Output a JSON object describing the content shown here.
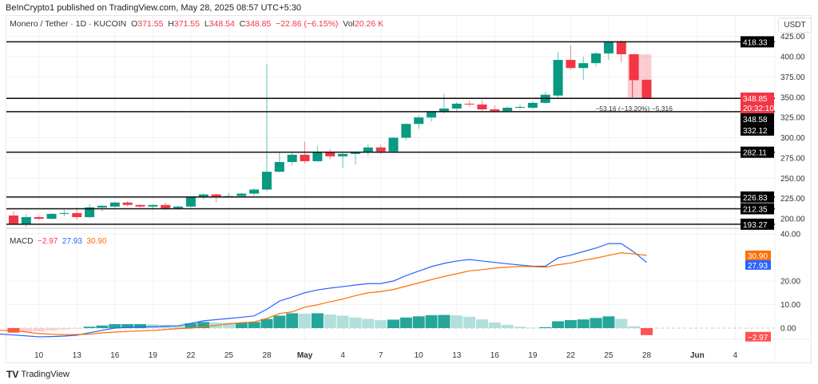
{
  "header": {
    "published": "BeInCrypto1 published on TradingView.com, May 28, 2025 08:57 UTC+5:30"
  },
  "legend": {
    "symbol": "Monero / Tether · 1D · KUCOIN",
    "o_label": "O",
    "o": "371.55",
    "h_label": "H",
    "h": "371.55",
    "l_label": "L",
    "l": "348.54",
    "c_label": "C",
    "c": "348.85",
    "change": "−22.86 (−6.15%)",
    "vol_label": "Vol",
    "vol": "20.26 K"
  },
  "currency": "USDT",
  "colors": {
    "up": "#089981",
    "down": "#f23645",
    "macd": "#2962ff",
    "signal": "#ff6d00",
    "hist_up_strong": "#26a69a",
    "hist_up_weak": "#b2dfdb",
    "hist_down_strong": "#ff5252",
    "hist_down_weak": "#ffcdd2"
  },
  "price_axis": {
    "ticks": [
      200,
      225,
      250,
      275,
      300,
      325,
      350,
      375,
      400,
      425
    ]
  },
  "levels": [
    418.33,
    348.58,
    332.12,
    282.11,
    226.83,
    212.35,
    193.27
  ],
  "last_price": {
    "value": "348.85",
    "countdown": "20:32:10"
  },
  "measure": {
    "text": "−53.16 (−13.20%) −5,316",
    "from": 403,
    "to": 349.85
  },
  "x_axis": {
    "labels": [
      {
        "day": 2,
        "t": "10"
      },
      {
        "day": 5,
        "t": "13"
      },
      {
        "day": 8,
        "t": "16"
      },
      {
        "day": 11,
        "t": "19"
      },
      {
        "day": 14,
        "t": "22"
      },
      {
        "day": 17,
        "t": "25"
      },
      {
        "day": 20,
        "t": "28"
      },
      {
        "day": 23,
        "t": "May"
      },
      {
        "day": 26,
        "t": "4"
      },
      {
        "day": 29,
        "t": "7"
      },
      {
        "day": 32,
        "t": "10"
      },
      {
        "day": 35,
        "t": "13"
      },
      {
        "day": 38,
        "t": "16"
      },
      {
        "day": 41,
        "t": "19"
      },
      {
        "day": 44,
        "t": "22"
      },
      {
        "day": 47,
        "t": "25"
      },
      {
        "day": 50,
        "t": "28"
      },
      {
        "day": 54,
        "t": "Jun"
      },
      {
        "day": 57,
        "t": "4"
      }
    ]
  },
  "chart_data": {
    "type": "candlestick",
    "start_date": "2025-04-08",
    "ohlc": [
      [
        204,
        209,
        193,
        194
      ],
      [
        193,
        206,
        190,
        202
      ],
      [
        202,
        204,
        198,
        200
      ],
      [
        200,
        207,
        199,
        206
      ],
      [
        206,
        211,
        203,
        207
      ],
      [
        207,
        214,
        199,
        202
      ],
      [
        202,
        218,
        201,
        214
      ],
      [
        214,
        217,
        209,
        216
      ],
      [
        215,
        221,
        214,
        220
      ],
      [
        220,
        222,
        215,
        217
      ],
      [
        217,
        218,
        214,
        215
      ],
      [
        215,
        218,
        211,
        217
      ],
      [
        217,
        220,
        211,
        213
      ],
      [
        213,
        216,
        212,
        215
      ],
      [
        215,
        228,
        214,
        227
      ],
      [
        227,
        231,
        224,
        230
      ],
      [
        230,
        231,
        220,
        227
      ],
      [
        227,
        232,
        226,
        228
      ],
      [
        228,
        232,
        227,
        231
      ],
      [
        231,
        238,
        228,
        236
      ],
      [
        236,
        391,
        234,
        258
      ],
      [
        258,
        282,
        257,
        270
      ],
      [
        270,
        283,
        266,
        279
      ],
      [
        279,
        295,
        268,
        271
      ],
      [
        271,
        290,
        270,
        282
      ],
      [
        282,
        286,
        273,
        277
      ],
      [
        277,
        281,
        263,
        280
      ],
      [
        280,
        283,
        267,
        282
      ],
      [
        282,
        292,
        278,
        288
      ],
      [
        288,
        292,
        280,
        283
      ],
      [
        283,
        301,
        281,
        300
      ],
      [
        300,
        318,
        297,
        317
      ],
      [
        317,
        328,
        311,
        325
      ],
      [
        325,
        333,
        320,
        332
      ],
      [
        332,
        354,
        330,
        336
      ],
      [
        336,
        344,
        333,
        342
      ],
      [
        342,
        346,
        338,
        341
      ],
      [
        341,
        346,
        333,
        335
      ],
      [
        335,
        340,
        331,
        333
      ],
      [
        333,
        339,
        331,
        337
      ],
      [
        337,
        341,
        336,
        338
      ],
      [
        337,
        345,
        335,
        343
      ],
      [
        343,
        357,
        342,
        353
      ],
      [
        352,
        406,
        349,
        396
      ],
      [
        396,
        414,
        384,
        386
      ],
      [
        386,
        400,
        371,
        392
      ],
      [
        392,
        406,
        388,
        404
      ],
      [
        404,
        419,
        396,
        419
      ],
      [
        419,
        420,
        393,
        403
      ],
      [
        403,
        404,
        371,
        371
      ],
      [
        371.55,
        371.55,
        348.54,
        348.85
      ]
    ],
    "ylim": [
      190,
      430
    ],
    "macd": {
      "label": "MACD",
      "hist_value": "−2.97",
      "macd_value": "27.93",
      "signal_value": "30.90",
      "ticks": [
        0,
        10,
        20,
        40
      ],
      "ylim": [
        -5,
        41
      ],
      "hist": [
        -1.9,
        -1.6,
        -1.4,
        -1.0,
        -0.6,
        -0.3,
        0.6,
        1.1,
        1.7,
        1.7,
        1.7,
        1.6,
        1.4,
        1.2,
        2.0,
        2.6,
        2.4,
        2.3,
        2.3,
        2.6,
        3.9,
        5.3,
        6.3,
        6.1,
        6.3,
        5.8,
        5.3,
        4.5,
        3.9,
        3.4,
        3.6,
        4.5,
        5.0,
        5.5,
        5.6,
        5.4,
        4.8,
        3.7,
        2.4,
        1.4,
        0.6,
        0.2,
        0.4,
        2.9,
        3.4,
        3.7,
        4.3,
        5.0,
        3.9,
        0.8,
        -2.97
      ],
      "macd": [
        -2.9,
        -3.3,
        -3.7,
        -3.6,
        -3.4,
        -3.0,
        -2.0,
        -0.9,
        0.0,
        0.3,
        0.5,
        0.6,
        0.8,
        1.0,
        2.0,
        3.1,
        3.6,
        4.1,
        4.6,
        5.2,
        8.0,
        11.5,
        13.2,
        15.0,
        16.2,
        17.0,
        17.6,
        18.3,
        18.9,
        18.9,
        20.0,
        22.3,
        24.2,
        26.1,
        27.5,
        28.5,
        29.1,
        28.5,
        27.9,
        27.3,
        26.8,
        26.3,
        26.3,
        29.8,
        31.0,
        32.5,
        34.0,
        35.9,
        35.9,
        32.3,
        27.93
      ]
    }
  },
  "footer": {
    "brand": "TradingView"
  }
}
